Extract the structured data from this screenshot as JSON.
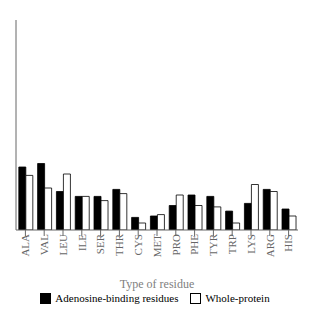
{
  "chart_data": {
    "type": "bar",
    "xlabel": "Type of residue",
    "categories": [
      "ALA",
      "VAL",
      "LEU",
      "ILE",
      "SER",
      "THR",
      "CYS",
      "MET",
      "PRO",
      "PHE",
      "TYR",
      "TRP",
      "LYS",
      "ARG",
      "HIS"
    ],
    "series": [
      {
        "name": "Adenosine-binding residues",
        "color": "#000000",
        "values": [
          0.09,
          0.095,
          0.055,
          0.048,
          0.048,
          0.058,
          0.018,
          0.02,
          0.035,
          0.05,
          0.048,
          0.027,
          0.038,
          0.058,
          0.03
        ]
      },
      {
        "name": "Whole-protein",
        "color": "#ffffff",
        "values": [
          0.078,
          0.06,
          0.08,
          0.048,
          0.042,
          0.052,
          0.01,
          0.022,
          0.05,
          0.035,
          0.033,
          0.01,
          0.065,
          0.055,
          0.02
        ]
      }
    ],
    "ylim": [
      0,
      0.3
    ],
    "tick_labels": "x",
    "legend": "bottom",
    "grid": false
  }
}
